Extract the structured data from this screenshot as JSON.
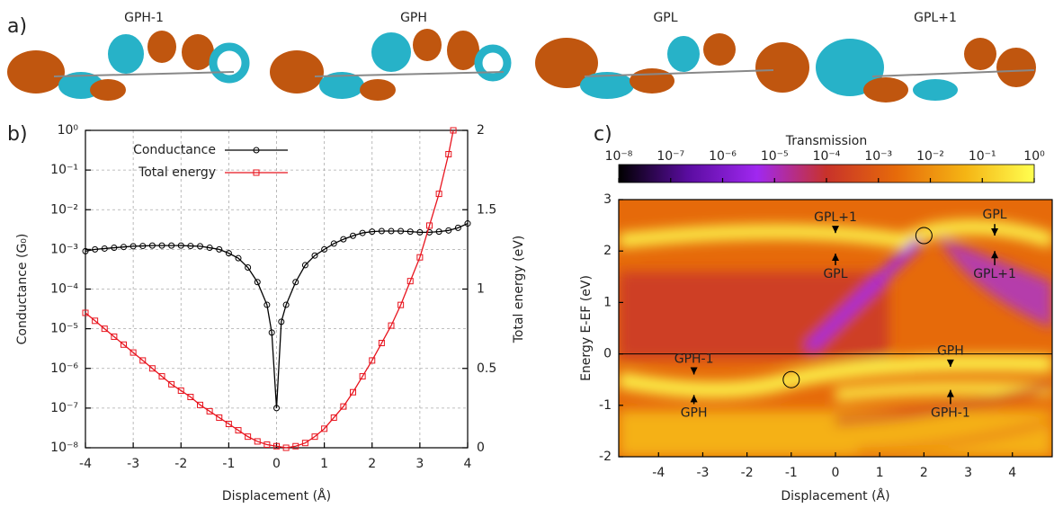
{
  "chart_data": [
    {
      "type": "image",
      "label": "a)",
      "images": [
        {
          "label": "GPH-1"
        },
        {
          "label": "GPH"
        },
        {
          "label": "GPL"
        },
        {
          "label": "GPL+1"
        }
      ]
    },
    {
      "type": "line",
      "label": "b)",
      "x_label": "Displacement (Å)",
      "y_label": "Conductance (G₀)",
      "y2_label": "Total energy (eV)",
      "xlim": [
        -4,
        4
      ],
      "xticks": [
        -4,
        -3,
        -2,
        -1,
        0,
        1,
        2,
        3,
        4
      ],
      "ylim": [
        1e-08,
        1
      ],
      "log_y": true,
      "yticks": [
        {
          "value": 1e-08,
          "label": "10⁻⁸"
        },
        {
          "value": 1e-07,
          "label": "10⁻⁷"
        },
        {
          "value": 1e-06,
          "label": "10⁻⁶"
        },
        {
          "value": 1e-05,
          "label": "10⁻⁵"
        },
        {
          "value": 0.0001,
          "label": "10⁻⁴"
        },
        {
          "value": 0.001,
          "label": "10⁻³"
        },
        {
          "value": 0.01,
          "label": "10⁻²"
        },
        {
          "value": 0.1,
          "label": "10⁻¹"
        },
        {
          "value": 1,
          "label": "10⁰"
        }
      ],
      "y2lim": [
        0,
        2
      ],
      "y2ticks": [
        0,
        0.5,
        1,
        1.5,
        2
      ],
      "grid": true,
      "legend": "top-left",
      "series": [
        {
          "name": "Conductance",
          "color": "#000000",
          "marker": "circle",
          "x": [
            -4,
            -3.8,
            -3.6,
            -3.4,
            -3.2,
            -3,
            -2.8,
            -2.6,
            -2.4,
            -2.2,
            -2,
            -1.8,
            -1.6,
            -1.4,
            -1.2,
            -1,
            -0.8,
            -0.6,
            -0.4,
            -0.2,
            -0.1,
            0,
            0.1,
            0.2,
            0.4,
            0.6,
            0.8,
            1,
            1.2,
            1.4,
            1.6,
            1.8,
            2,
            2.2,
            2.4,
            2.6,
            2.8,
            3,
            3.2,
            3.4,
            3.6,
            3.8,
            4
          ],
          "values": [
            0.0009,
            0.001,
            0.00105,
            0.0011,
            0.00115,
            0.0012,
            0.00122,
            0.00125,
            0.00125,
            0.00125,
            0.00125,
            0.00122,
            0.0012,
            0.0011,
            0.001,
            0.0008,
            0.0006,
            0.00035,
            0.00015,
            4e-05,
            8e-06,
            1e-07,
            1.5e-05,
            4e-05,
            0.00015,
            0.0004,
            0.0007,
            0.001,
            0.0014,
            0.0018,
            0.0022,
            0.0026,
            0.0028,
            0.0029,
            0.0029,
            0.0029,
            0.0028,
            0.0027,
            0.0027,
            0.0028,
            0.003,
            0.0035,
            0.0045
          ]
        },
        {
          "name": "Total energy",
          "color": "#e8141e",
          "marker": "square",
          "axis": "y2",
          "x": [
            -4,
            -3.8,
            -3.6,
            -3.4,
            -3.2,
            -3,
            -2.8,
            -2.6,
            -2.4,
            -2.2,
            -2,
            -1.8,
            -1.6,
            -1.4,
            -1.2,
            -1,
            -0.8,
            -0.6,
            -0.4,
            -0.2,
            0,
            0.2,
            0.4,
            0.6,
            0.8,
            1,
            1.2,
            1.4,
            1.6,
            1.8,
            2,
            2.2,
            2.4,
            2.6,
            2.8,
            3,
            3.2,
            3.4,
            3.6,
            3.7
          ],
          "values": [
            0.85,
            0.8,
            0.75,
            0.7,
            0.65,
            0.6,
            0.55,
            0.5,
            0.45,
            0.4,
            0.36,
            0.32,
            0.27,
            0.23,
            0.19,
            0.15,
            0.11,
            0.07,
            0.04,
            0.02,
            0.01,
            0,
            0.01,
            0.03,
            0.07,
            0.12,
            0.19,
            0.26,
            0.35,
            0.45,
            0.55,
            0.66,
            0.77,
            0.9,
            1.05,
            1.2,
            1.4,
            1.6,
            1.85,
            2
          ]
        }
      ]
    },
    {
      "type": "heatmap",
      "label": "c)",
      "x_label": "Displacement (Å)",
      "y_label": "Energy E-EF (eV)",
      "xlim": [
        -4.9,
        4.9
      ],
      "xticks": [
        -4,
        -3,
        -2,
        -1,
        0,
        1,
        2,
        3,
        4
      ],
      "ylim": [
        -2,
        3
      ],
      "yticks": [
        -2,
        -1,
        0,
        1,
        2,
        3
      ],
      "hline": 0,
      "colorbar_label": "Transmission",
      "colorbar_lim": [
        1e-08,
        1
      ],
      "colorbar_log": true,
      "colorbar_colors": [
        "#000000",
        "#5a0ca0",
        "#a028f0",
        "#c8322a",
        "#e66a0a",
        "#f5b414",
        "#ffff50"
      ],
      "colorbar_ticks": [
        {
          "value": 1e-08,
          "label": "10⁻⁸"
        },
        {
          "value": 1e-07,
          "label": "10⁻⁷"
        },
        {
          "value": 1e-06,
          "label": "10⁻⁶"
        },
        {
          "value": 1e-05,
          "label": "10⁻⁵"
        },
        {
          "value": 0.0001,
          "label": "10⁻⁴"
        },
        {
          "value": 0.001,
          "label": "10⁻³"
        },
        {
          "value": 0.01,
          "label": "10⁻²"
        },
        {
          "value": 0.1,
          "label": "10⁻¹"
        },
        {
          "value": 1,
          "label": "10⁰"
        }
      ],
      "annotations": [
        {
          "text": "GPL+1"
        },
        {
          "text": "GPL"
        },
        {
          "text": "GPL"
        },
        {
          "text": "GPL+1"
        },
        {
          "text": "GPH-1"
        },
        {
          "text": "GPH"
        },
        {
          "text": "GPH"
        },
        {
          "text": "GPH-1"
        }
      ]
    }
  ]
}
